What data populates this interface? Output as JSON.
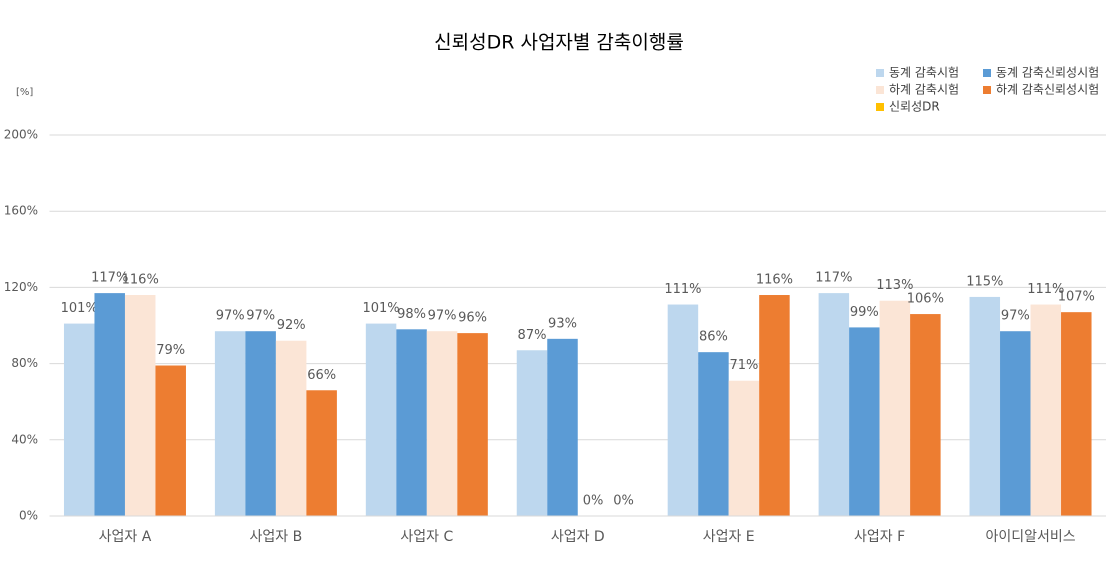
{
  "chart_data": {
    "type": "bar",
    "title": "신뢰성DR 사업자별 감축이행률",
    "y_unit": "[%]",
    "categories": [
      "사업자 A",
      "사업자 B",
      "사업자 C",
      "사업자 D",
      "사업자 E",
      "사업자 F",
      "아이디알서비스"
    ],
    "series": [
      {
        "name": "동계 감축시험",
        "color": "#bdd7ee",
        "values": [
          101,
          97,
          101,
          87,
          111,
          117,
          115
        ],
        "value_labels": [
          "101%",
          "97%",
          "101%",
          "87%",
          "111%",
          "117%",
          "115%"
        ]
      },
      {
        "name": "동계 감축신뢰성시험",
        "color": "#5b9bd5",
        "values": [
          117,
          97,
          98,
          93,
          86,
          99,
          97
        ],
        "value_labels": [
          "117%",
          "97%",
          "98%",
          "93%",
          "86%",
          "99%",
          "97%"
        ]
      },
      {
        "name": "하계 감축시험",
        "color": "#fbe5d6",
        "values": [
          116,
          92,
          97,
          0,
          71,
          113,
          111
        ],
        "value_labels": [
          "116%",
          "92%",
          "97%",
          "0%",
          "71%",
          "113%",
          "111%"
        ]
      },
      {
        "name": "하계 감축신뢰성시험",
        "color": "#ed7d31",
        "values": [
          79,
          66,
          96,
          0,
          116,
          106,
          107
        ],
        "value_labels": [
          "79%",
          "66%",
          "96%",
          "0%",
          "116%",
          "106%",
          "107%"
        ]
      },
      {
        "name": "신뢰성DR",
        "color": "#ffc000",
        "values": [
          null,
          null,
          null,
          null,
          null,
          null,
          null
        ]
      }
    ],
    "ylim": [
      0,
      200
    ],
    "yticks": [
      {
        "value": 0,
        "label": "0%"
      },
      {
        "value": 40,
        "label": "40%"
      },
      {
        "value": 80,
        "label": "80%"
      },
      {
        "value": 120,
        "label": "120%"
      },
      {
        "value": 160,
        "label": "160%"
      },
      {
        "value": 200,
        "label": "200%"
      }
    ],
    "grid": true,
    "legend": "top-right"
  }
}
